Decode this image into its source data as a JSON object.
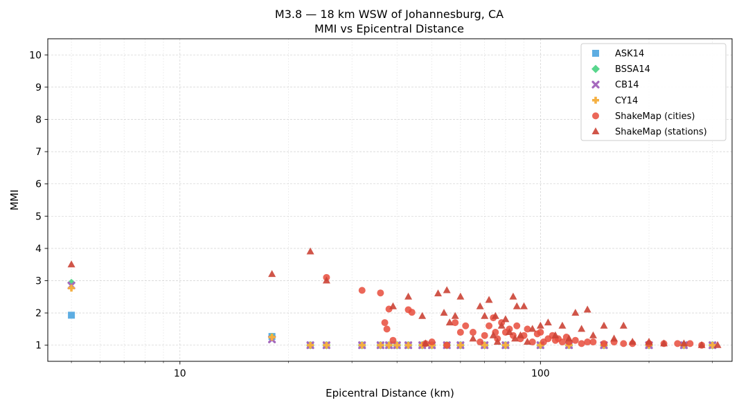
{
  "chart_data": {
    "type": "scatter",
    "title": "M3.8 — 18 km WSW of Johannesburg, CA",
    "subtitle": "MMI vs Epicentral Distance",
    "xlabel": "Epicentral Distance (km)",
    "ylabel": "MMI",
    "xscale": "log",
    "xlim": [
      4.3,
      340
    ],
    "ylim": [
      0.5,
      10.5
    ],
    "xticks": [
      {
        "value": 10,
        "label": "10"
      },
      {
        "value": 100,
        "label": "100"
      }
    ],
    "yticks": [
      {
        "value": 1,
        "label": "1"
      },
      {
        "value": 2,
        "label": "2"
      },
      {
        "value": 3,
        "label": "3"
      },
      {
        "value": 4,
        "label": "4"
      },
      {
        "value": 5,
        "label": "5"
      },
      {
        "value": 6,
        "label": "6"
      },
      {
        "value": 7,
        "label": "7"
      },
      {
        "value": 8,
        "label": "8"
      },
      {
        "value": 9,
        "label": "9"
      },
      {
        "value": 10,
        "label": "10"
      }
    ],
    "grid": true,
    "legend_position": "top-right",
    "series": [
      {
        "name": "ASK14",
        "marker": "square",
        "color": "#5dade2",
        "x": [
          5,
          18,
          23,
          25.5,
          32,
          36,
          38,
          40,
          43,
          47,
          50,
          55,
          60,
          70,
          80,
          100,
          120,
          150,
          200,
          250,
          300
        ],
        "y": [
          1.93,
          1.27,
          1.0,
          1.0,
          1.0,
          1.0,
          1.0,
          1.0,
          1.0,
          1.0,
          1.0,
          1.0,
          1.0,
          1.0,
          1.0,
          1.0,
          1.0,
          1.0,
          1.0,
          1.0,
          1.0
        ]
      },
      {
        "name": "BSSA14",
        "marker": "diamond",
        "color": "#58d68d",
        "x": [
          5,
          18,
          23,
          25.5,
          32,
          36,
          38,
          40,
          43,
          47,
          50,
          55,
          60,
          70,
          80,
          100,
          120,
          150,
          200,
          250,
          300
        ],
        "y": [
          2.93,
          1.25,
          1.0,
          1.0,
          1.0,
          1.0,
          1.0,
          1.0,
          1.0,
          1.0,
          1.0,
          1.0,
          1.0,
          1.0,
          1.0,
          1.0,
          1.0,
          1.0,
          1.0,
          1.0,
          1.0
        ]
      },
      {
        "name": "CB14",
        "marker": "x",
        "color": "#a569bd",
        "x": [
          5,
          18,
          23,
          25.5,
          32,
          36,
          38,
          40,
          43,
          47,
          50,
          55,
          60,
          70,
          80,
          100,
          120,
          150,
          200,
          250,
          300
        ],
        "y": [
          2.85,
          1.18,
          1.0,
          1.0,
          1.0,
          1.0,
          1.0,
          1.0,
          1.0,
          1.0,
          1.0,
          1.0,
          1.0,
          1.0,
          1.0,
          1.0,
          1.0,
          1.0,
          1.0,
          1.0,
          1.0
        ]
      },
      {
        "name": "CY14",
        "marker": "plus",
        "color": "#f5b041",
        "x": [
          5,
          18,
          23,
          25.5,
          32,
          36,
          38,
          40,
          43,
          47,
          50,
          55,
          60,
          70,
          80,
          100,
          120,
          150,
          200,
          250,
          300
        ],
        "y": [
          2.77,
          1.25,
          1.0,
          1.0,
          1.0,
          1.0,
          1.0,
          1.0,
          1.0,
          1.0,
          1.0,
          1.0,
          1.0,
          1.0,
          1.0,
          1.0,
          1.0,
          1.0,
          1.0,
          1.0,
          1.0
        ]
      },
      {
        "name": "ShakeMap (cities)",
        "marker": "circle",
        "color": "#e74c3c",
        "x": [
          25.5,
          32,
          36,
          37,
          37.5,
          38,
          39,
          43,
          44,
          48,
          50,
          55,
          58,
          60,
          62,
          65,
          68,
          70,
          72,
          74,
          75,
          76,
          78,
          80,
          82,
          84,
          86,
          88,
          90,
          92,
          95,
          98,
          100,
          102,
          105,
          108,
          110,
          112,
          115,
          118,
          120,
          125,
          130,
          135,
          140,
          150,
          160,
          170,
          180,
          200,
          220,
          240,
          260,
          280
        ],
        "y": [
          3.1,
          2.7,
          2.62,
          1.7,
          1.5,
          2.12,
          1.15,
          2.1,
          2.02,
          1.05,
          1.1,
          1.0,
          1.7,
          1.4,
          1.6,
          1.4,
          1.1,
          1.3,
          1.6,
          1.85,
          1.4,
          1.2,
          1.7,
          1.4,
          1.5,
          1.3,
          1.6,
          1.2,
          1.3,
          1.5,
          1.1,
          1.35,
          1.4,
          1.1,
          1.2,
          1.3,
          1.15,
          1.2,
          1.1,
          1.25,
          1.1,
          1.15,
          1.05,
          1.1,
          1.1,
          1.05,
          1.1,
          1.05,
          1.05,
          1.05,
          1.05,
          1.05,
          1.05,
          1.0
        ]
      },
      {
        "name": "ShakeMap (stations)",
        "marker": "triangle",
        "color": "#cb4335",
        "x": [
          5,
          18,
          23,
          25.5,
          39,
          43,
          47,
          48,
          52,
          54,
          55,
          56,
          58,
          60,
          65,
          68,
          70,
          72,
          74,
          75,
          76,
          78,
          80,
          82,
          84,
          85,
          86,
          88,
          90,
          92,
          95,
          100,
          105,
          110,
          115,
          120,
          125,
          130,
          135,
          140,
          150,
          160,
          170,
          180,
          200,
          220,
          250,
          280,
          310
        ],
        "y": [
          3.5,
          3.2,
          3.9,
          3.0,
          2.2,
          2.5,
          1.9,
          1.05,
          2.6,
          2.0,
          2.7,
          1.7,
          1.9,
          2.5,
          1.2,
          2.2,
          1.9,
          2.4,
          1.3,
          1.9,
          1.1,
          1.6,
          1.8,
          1.4,
          2.5,
          1.2,
          2.2,
          1.3,
          2.2,
          1.1,
          1.5,
          1.6,
          1.7,
          1.3,
          1.6,
          1.2,
          2.0,
          1.5,
          2.1,
          1.3,
          1.6,
          1.2,
          1.6,
          1.1,
          1.1,
          1.05,
          1.05,
          1.0,
          1.0
        ]
      }
    ]
  }
}
